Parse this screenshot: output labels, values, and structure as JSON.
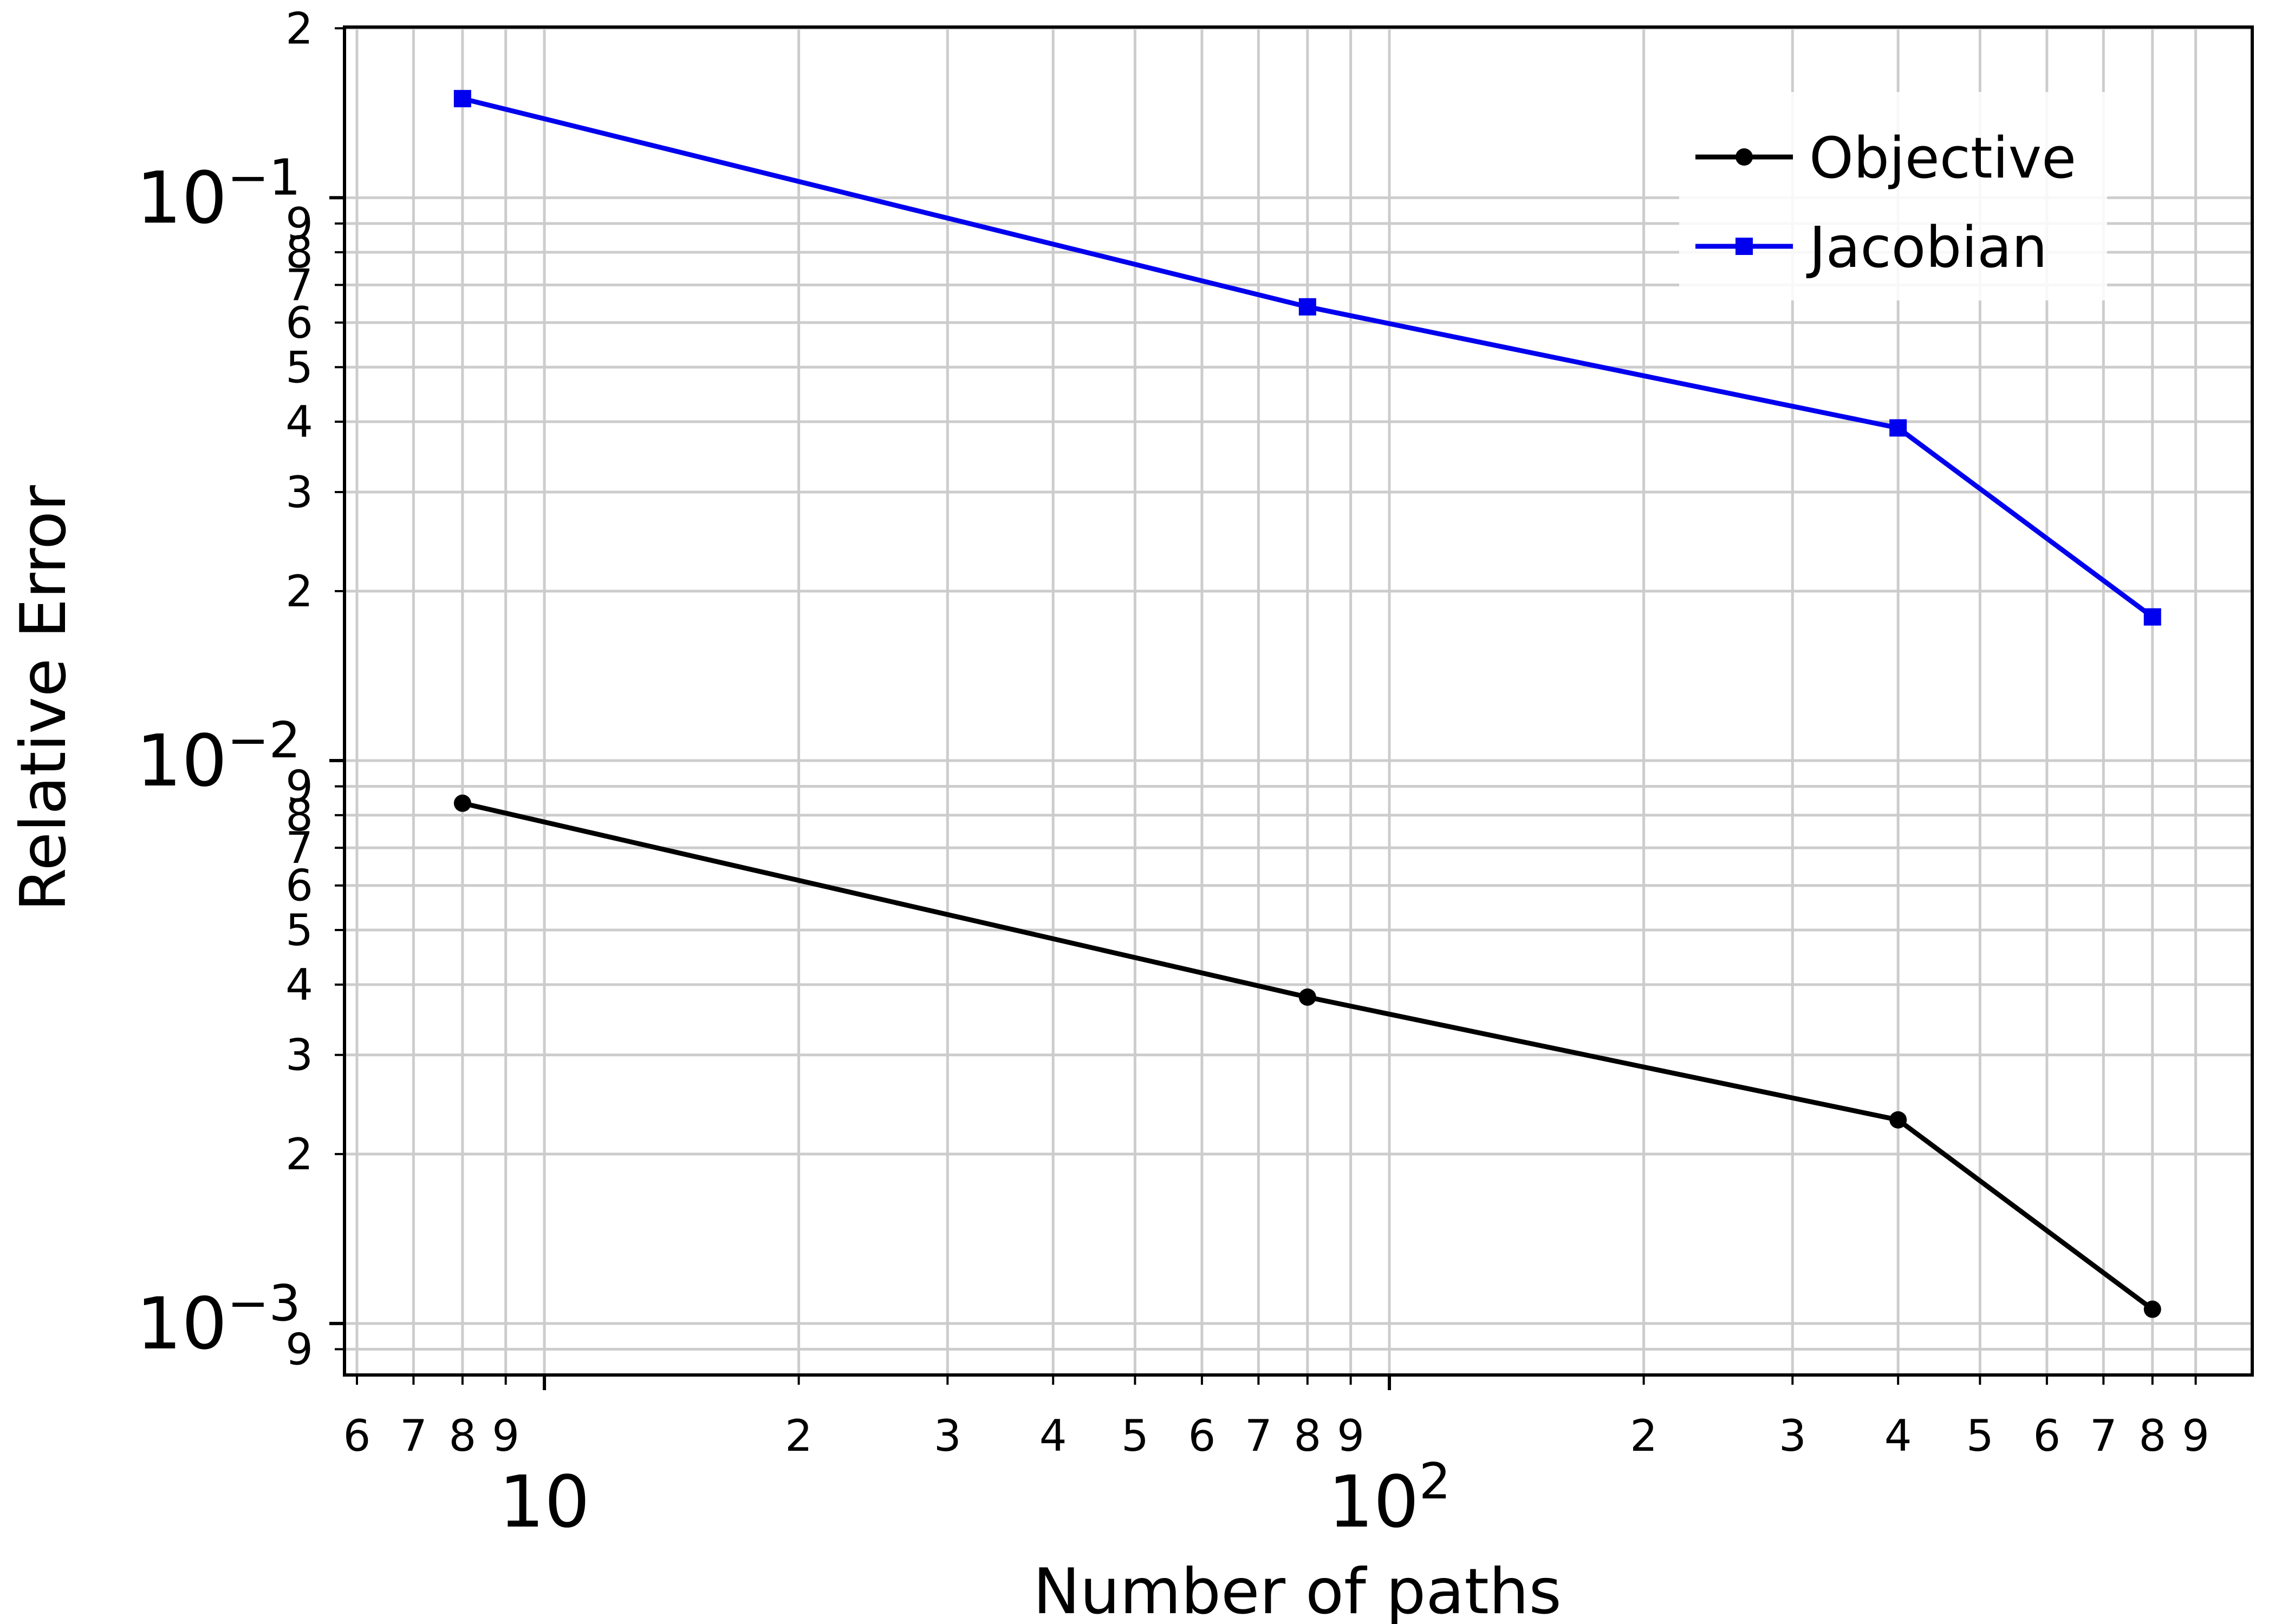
{
  "chart_data": {
    "type": "line",
    "title": "",
    "xlabel": "Number of paths",
    "ylabel": "Relative Error",
    "x_scale": "log",
    "y_scale": "log",
    "xlim": [
      5.8,
      1050
    ],
    "ylim": [
      0.00081,
      0.201
    ],
    "grid": true,
    "legend_position": "top-right",
    "x_major_ticks": [
      {
        "value": 10,
        "base": "10",
        "exp": ""
      },
      {
        "value": 100,
        "base": "10",
        "exp": "2"
      }
    ],
    "x_minor_ticks": [
      {
        "value": 6,
        "label": "6"
      },
      {
        "value": 7,
        "label": "7"
      },
      {
        "value": 8,
        "label": "8"
      },
      {
        "value": 9,
        "label": "9"
      },
      {
        "value": 20,
        "label": "2"
      },
      {
        "value": 30,
        "label": "3"
      },
      {
        "value": 40,
        "label": "4"
      },
      {
        "value": 50,
        "label": "5"
      },
      {
        "value": 60,
        "label": "6"
      },
      {
        "value": 70,
        "label": "7"
      },
      {
        "value": 80,
        "label": "8"
      },
      {
        "value": 90,
        "label": "9"
      },
      {
        "value": 200,
        "label": "2"
      },
      {
        "value": 300,
        "label": "3"
      },
      {
        "value": 400,
        "label": "4"
      },
      {
        "value": 500,
        "label": "5"
      },
      {
        "value": 600,
        "label": "6"
      },
      {
        "value": 700,
        "label": "7"
      },
      {
        "value": 800,
        "label": "8"
      },
      {
        "value": 900,
        "label": "9"
      }
    ],
    "y_major_ticks": [
      {
        "value": 0.001,
        "base": "10",
        "exp": "−3"
      },
      {
        "value": 0.01,
        "base": "10",
        "exp": "−2"
      },
      {
        "value": 0.1,
        "base": "10",
        "exp": "−1"
      }
    ],
    "y_minor_ticks": [
      {
        "value": 0.0009,
        "label": "9"
      },
      {
        "value": 0.002,
        "label": "2"
      },
      {
        "value": 0.003,
        "label": "3"
      },
      {
        "value": 0.004,
        "label": "4"
      },
      {
        "value": 0.005,
        "label": "5"
      },
      {
        "value": 0.006,
        "label": "6"
      },
      {
        "value": 0.007,
        "label": "7"
      },
      {
        "value": 0.008,
        "label": "8"
      },
      {
        "value": 0.009,
        "label": "9"
      },
      {
        "value": 0.02,
        "label": "2"
      },
      {
        "value": 0.03,
        "label": "3"
      },
      {
        "value": 0.04,
        "label": "4"
      },
      {
        "value": 0.05,
        "label": "5"
      },
      {
        "value": 0.06,
        "label": "6"
      },
      {
        "value": 0.07,
        "label": "7"
      },
      {
        "value": 0.08,
        "label": "8"
      },
      {
        "value": 0.09,
        "label": "9"
      },
      {
        "value": 0.2,
        "label": "2"
      }
    ],
    "series": [
      {
        "name": "Objective",
        "color": "#000000",
        "marker": "circle",
        "x": [
          8,
          80,
          400,
          800
        ],
        "y": [
          0.0084,
          0.0038,
          0.0023,
          0.00106
        ]
      },
      {
        "name": "Jacobian",
        "color": "#0000ee",
        "marker": "square",
        "x": [
          8,
          80,
          400,
          800
        ],
        "y": [
          0.15,
          0.064,
          0.039,
          0.018
        ]
      }
    ]
  }
}
